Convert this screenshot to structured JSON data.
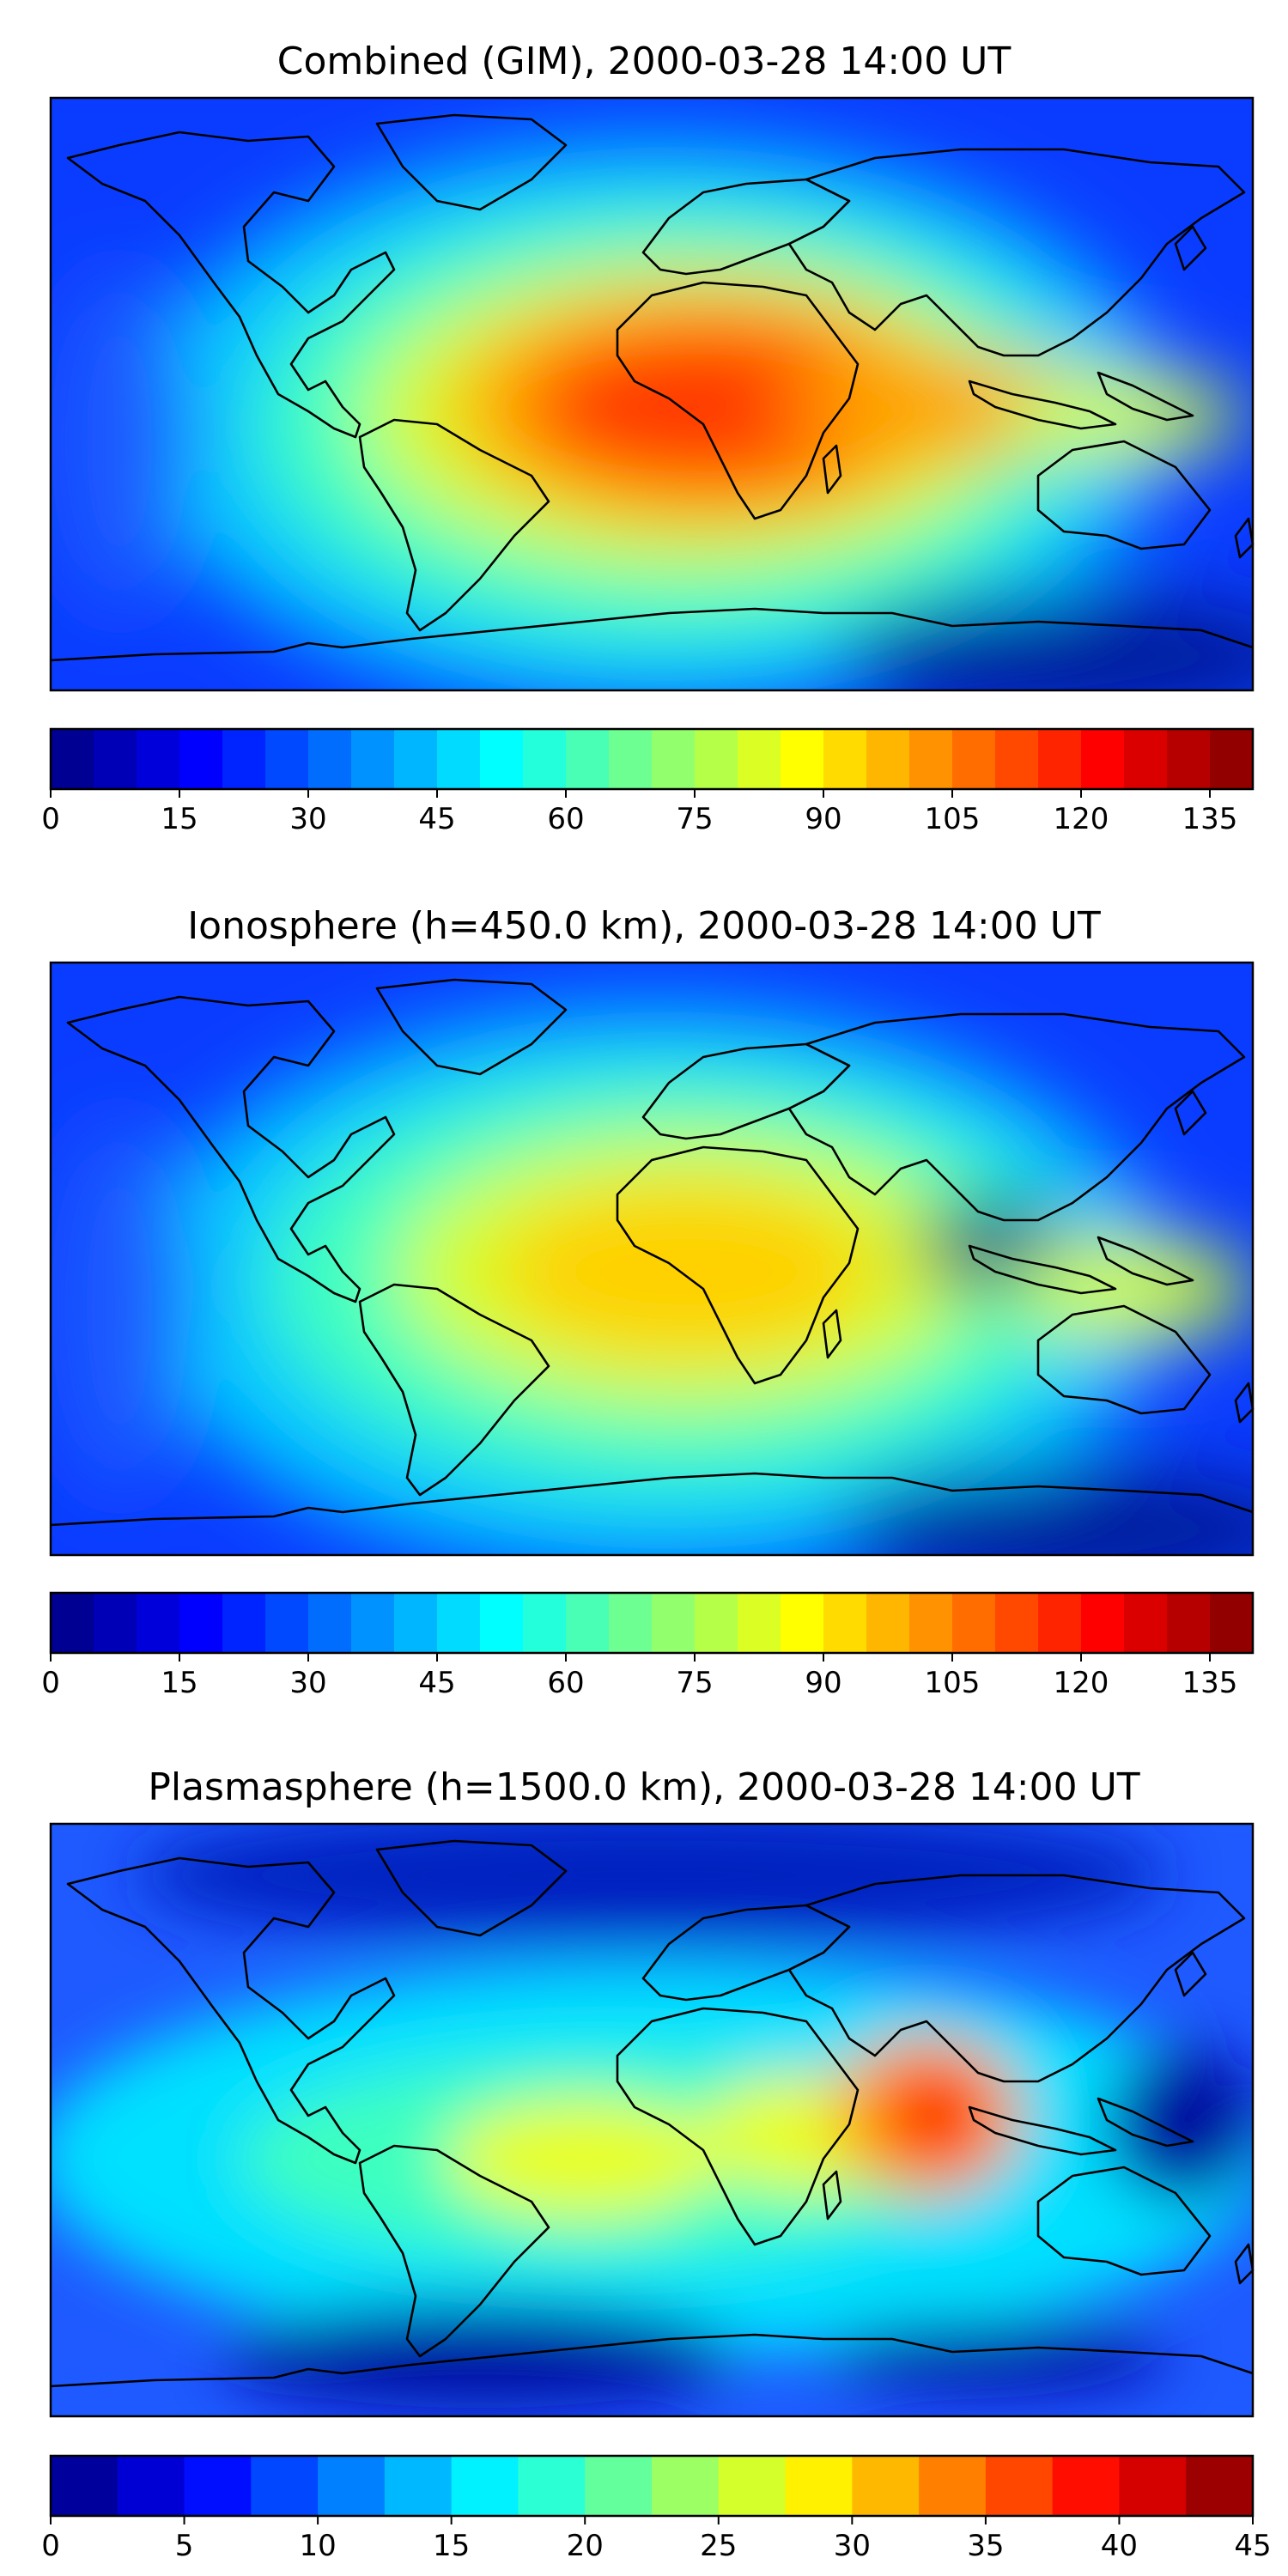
{
  "chart_data": [
    {
      "type": "heatmap",
      "title": "Combined (GIM), 2000-03-28 14:00 UT",
      "colormap": "jet",
      "colorbar": {
        "range": [
          0,
          140
        ],
        "levels": 28,
        "ticks": [
          "0",
          "15",
          "30",
          "45",
          "60",
          "75",
          "90",
          "105",
          "120",
          "135"
        ],
        "tick_values": [
          0,
          15,
          30,
          45,
          60,
          75,
          90,
          105,
          120,
          135
        ]
      },
      "coastlines": true
    },
    {
      "type": "heatmap",
      "title": "Ionosphere  (h=450.0 km), 2000-03-28 14:00 UT",
      "colormap": "jet",
      "colorbar": {
        "range": [
          0,
          140
        ],
        "levels": 28,
        "ticks": [
          "0",
          "15",
          "30",
          "45",
          "60",
          "75",
          "90",
          "105",
          "120",
          "135"
        ],
        "tick_values": [
          0,
          15,
          30,
          45,
          60,
          75,
          90,
          105,
          120,
          135
        ]
      },
      "coastlines": true
    },
    {
      "type": "heatmap",
      "title": "Plasmasphere (h=1500.0 km), 2000-03-28 14:00 UT",
      "colormap": "jet",
      "colorbar": {
        "range": [
          0,
          45
        ],
        "levels": 18,
        "ticks": [
          "0",
          "5",
          "10",
          "15",
          "20",
          "25",
          "30",
          "35",
          "40",
          "45"
        ],
        "tick_values": [
          0,
          5,
          10,
          15,
          20,
          25,
          30,
          35,
          40,
          45
        ]
      },
      "coastlines": true
    }
  ]
}
